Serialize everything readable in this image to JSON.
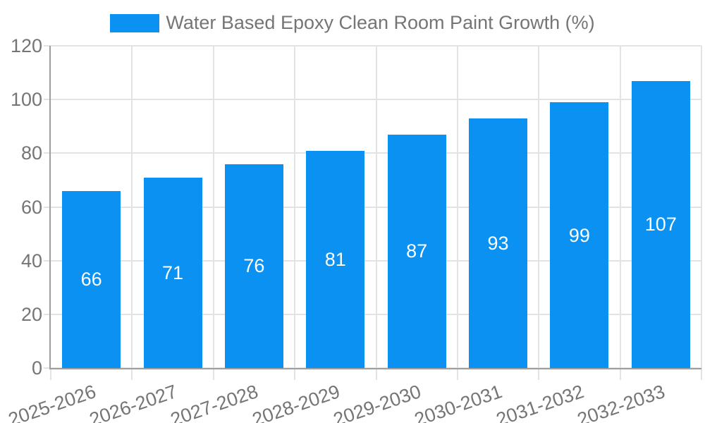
{
  "chart_data": {
    "type": "bar",
    "title": "Water Based Epoxy Clean Room Paint Growth (%)",
    "categories": [
      "2025-2026",
      "2026-2027",
      "2027-2028",
      "2028-2029",
      "2029-2030",
      "2030-2031",
      "2031-2032",
      "2032-2033"
    ],
    "values": [
      66,
      71,
      76,
      81,
      87,
      93,
      99,
      107
    ],
    "xlabel": "",
    "ylabel": "",
    "ylim": [
      0,
      120
    ],
    "yticks": [
      0,
      20,
      40,
      60,
      80,
      100,
      120
    ],
    "grid": true,
    "legend_position": "top-center",
    "x_label_rotation_deg": -19,
    "colors": {
      "bar": "#0a91f2",
      "grid": "#e3e3e3",
      "axis": "#9e9e9e",
      "text": "#757575",
      "value_label": "#ffffff",
      "background": "#ffffff"
    }
  },
  "legend": {
    "label": "Water Based Epoxy Clean Room Paint Growth (%)"
  }
}
